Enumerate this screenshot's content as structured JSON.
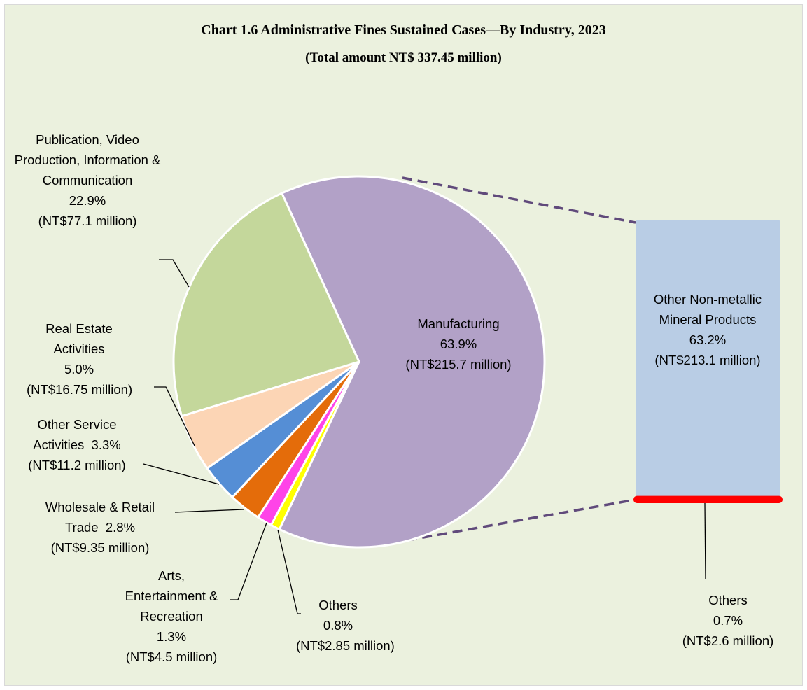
{
  "chart_data": {
    "type": "pie",
    "title": "Chart 1.6 Administrative Fines Sustained Cases—By Industry, 2023",
    "subtitle": "(Total amount NT$ 337.45 million)",
    "categories": [
      "Manufacturing",
      "Others",
      "Arts, Entertainment & Recreation",
      "Wholesale & Retail Trade",
      "Other Service Activities",
      "Real Estate Activities",
      "Publication, Video Production, Information & Communication"
    ],
    "values": [
      63.9,
      0.8,
      1.3,
      2.8,
      3.3,
      5.0,
      22.9
    ],
    "value_labels": [
      "63.9%",
      "0.8%",
      "1.3%",
      "2.8%",
      "3.3%",
      "5.0%",
      "22.9%"
    ],
    "amounts": [
      215.7,
      2.85,
      4.5,
      9.35,
      11.2,
      16.75,
      77.1
    ],
    "amount_labels": [
      "(NT$215.7 million)",
      "(NT$2.85 million)",
      "(NT$4.5 million)",
      "(NT$9.35 million)",
      "(NT$11.2 million)",
      "(NT$16.75 million)",
      "(NT$77.1 million)"
    ],
    "colors": [
      "#b2a1c7",
      "#ffff00",
      "#ff44e8",
      "#e46c0a",
      "#558ed5",
      "#fcd5b5",
      "#c4d79b"
    ],
    "breakdown": {
      "type": "bar",
      "categories": [
        "Other Non-metallic Mineral Products",
        "Others"
      ],
      "values": [
        63.2,
        0.7
      ],
      "value_labels": [
        "63.2%",
        "0.7%"
      ],
      "amounts": [
        213.1,
        2.6
      ],
      "amount_labels": [
        "(NT$213.1 million)",
        "(NT$2.6 million)"
      ],
      "colors": [
        "#b9cde5",
        "#ff0000"
      ]
    }
  }
}
